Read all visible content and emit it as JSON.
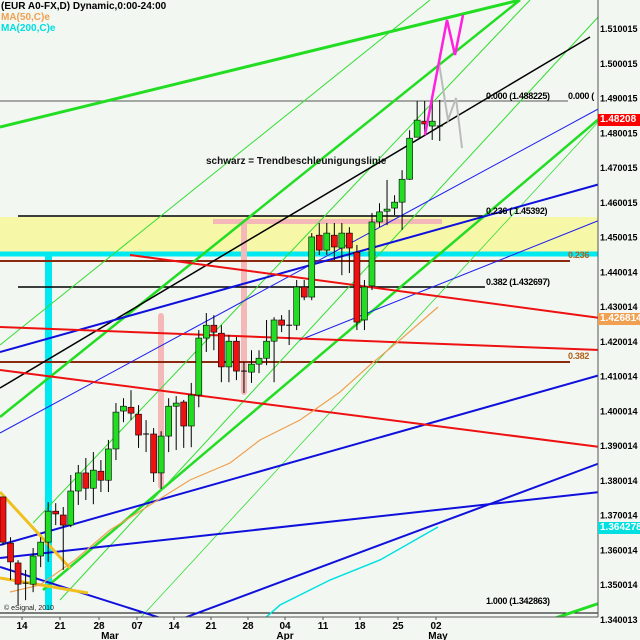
{
  "header": {
    "symbol_line": "(EUR A0-FX,D) Dynamic,0:00-24:00",
    "ma50_label": "MA(50,C)e",
    "ma200_label": "MA(200,C)e"
  },
  "colors": {
    "ma50": "#f0a050",
    "ma200": "#00e0e0",
    "up": "#22dd22",
    "down": "#ee1111",
    "last_price": "#ff0000"
  },
  "annotation": "schwarz = Trendbeschleunigungslinie",
  "copyright": "© eSignal, 2010",
  "fib_labels": {
    "f0": "0.000 (1.488225)",
    "f0_right": "0.000 (",
    "f236": "0.236 ( 1.45392)",
    "f236_right": "0.236",
    "f382": "0.382 (1.432697)",
    "f382_right": "0.382",
    "f1000": "1.000 (1.342863)"
  },
  "badges": {
    "last": "1.48208",
    "ma50": "1.426814",
    "ma200": "1.364278"
  },
  "chart_data": {
    "type": "candlestick",
    "title": "(EUR A0-FX,D) Dynamic,0:00-24:00",
    "y_ticks": [
      "1.510015",
      "1.500015",
      "1.490015",
      "1.480015",
      "1.470015",
      "1.460015",
      "1.450015",
      "1.440014",
      "1.430014",
      "1.420014",
      "1.410014",
      "1.400014",
      "1.390014",
      "1.380014",
      "1.370014",
      "1.360014",
      "1.350014",
      "1.340013"
    ],
    "ylim": [
      1.3385,
      1.5185
    ],
    "x_ticks": [
      "14",
      "21",
      "28",
      "07",
      "14",
      "21",
      "28",
      "04",
      "11",
      "18",
      "25",
      "02"
    ],
    "x_months": [
      "Mar",
      "Apr",
      "May"
    ],
    "ohlc": [
      [
        1.3754,
        1.3754,
        1.3615,
        1.3624
      ],
      [
        1.3621,
        1.3638,
        1.3515,
        1.3567
      ],
      [
        1.3564,
        1.3572,
        1.3443,
        1.3503
      ],
      [
        1.3503,
        1.3544,
        1.3457,
        1.3506
      ],
      [
        1.3503,
        1.3607,
        1.348,
        1.3584
      ],
      [
        1.3584,
        1.3638,
        1.3552,
        1.3624
      ],
      [
        1.3624,
        1.3739,
        1.3567,
        1.3713
      ],
      [
        1.3713,
        1.3736,
        1.3673,
        1.3705
      ],
      [
        1.3702,
        1.3725,
        1.3544,
        1.3673
      ],
      [
        1.3673,
        1.3817,
        1.3667,
        1.3771
      ],
      [
        1.3771,
        1.3846,
        1.3731,
        1.3823
      ],
      [
        1.3823,
        1.3866,
        1.3745,
        1.3779
      ],
      [
        1.3779,
        1.3883,
        1.3733,
        1.3831
      ],
      [
        1.3828,
        1.386,
        1.3768,
        1.3802
      ],
      [
        1.3802,
        1.3918,
        1.3768,
        1.3892
      ],
      [
        1.3892,
        1.4024,
        1.386,
        1.3998
      ],
      [
        1.4001,
        1.4038,
        1.3969,
        1.4015
      ],
      [
        1.4012,
        1.4061,
        1.3975,
        1.3995
      ],
      [
        1.3992,
        1.4018,
        1.3895,
        1.3932
      ],
      [
        1.3932,
        1.3975,
        1.3883,
        1.3935
      ],
      [
        1.3935,
        1.3952,
        1.3797,
        1.3823
      ],
      [
        1.3823,
        1.3943,
        1.3777,
        1.3929
      ],
      [
        1.3929,
        1.4038,
        1.3883,
        1.4015
      ],
      [
        1.4015,
        1.4044,
        1.3889,
        1.4024
      ],
      [
        1.4027,
        1.4033,
        1.3895,
        1.3958
      ],
      [
        1.3958,
        1.4082,
        1.3897,
        1.4047
      ],
      [
        1.4047,
        1.4234,
        1.4012,
        1.4211
      ],
      [
        1.4211,
        1.4283,
        1.4171,
        1.4248
      ],
      [
        1.4248,
        1.4277,
        1.4176,
        1.4228
      ],
      [
        1.4225,
        1.4248,
        1.4084,
        1.4128
      ],
      [
        1.4128,
        1.422,
        1.4084,
        1.4202
      ],
      [
        1.4202,
        1.4214,
        1.409,
        1.4116
      ],
      [
        1.4113,
        1.4142,
        1.4053,
        1.4116
      ],
      [
        1.4113,
        1.4176,
        1.4082,
        1.4136
      ],
      [
        1.4136,
        1.4176,
        1.411,
        1.4153
      ],
      [
        1.4153,
        1.4263,
        1.4133,
        1.4202
      ],
      [
        1.4202,
        1.4271,
        1.4084,
        1.4263
      ],
      [
        1.4263,
        1.4277,
        1.4228,
        1.4248
      ],
      [
        1.4248,
        1.4292,
        1.4191,
        1.4246
      ],
      [
        1.4248,
        1.4378,
        1.4234,
        1.4358
      ],
      [
        1.4358,
        1.4378,
        1.432,
        1.4329
      ],
      [
        1.4329,
        1.4513,
        1.432,
        1.4502
      ],
      [
        1.4507,
        1.4542,
        1.445,
        1.4464
      ],
      [
        1.4464,
        1.4542,
        1.445,
        1.4513
      ],
      [
        1.4507,
        1.4542,
        1.4435,
        1.4473
      ],
      [
        1.447,
        1.4542,
        1.4392,
        1.4513
      ],
      [
        1.4513,
        1.453,
        1.4398,
        1.447
      ],
      [
        1.4458,
        1.4479,
        1.4234,
        1.4257
      ],
      [
        1.4263,
        1.4378,
        1.4234,
        1.4358
      ],
      [
        1.4361,
        1.4571,
        1.4349,
        1.4545
      ],
      [
        1.4545,
        1.4599,
        1.453,
        1.4574
      ],
      [
        1.4576,
        1.4666,
        1.4536,
        1.4582
      ],
      [
        1.4585,
        1.4622,
        1.4565,
        1.4602
      ],
      [
        1.4602,
        1.4694,
        1.4522,
        1.4668
      ],
      [
        1.4668,
        1.4809,
        1.4666,
        1.4786
      ],
      [
        1.4789,
        1.4893,
        1.4789,
        1.4838
      ],
      [
        1.4835,
        1.4893,
        1.4804,
        1.4827
      ],
      [
        1.4821,
        1.4896,
        1.4781,
        1.4835
      ],
      [
        1.4821,
        1.4896,
        1.4778,
        1.4821
      ]
    ],
    "fib_levels": [
      1.488225,
      1.45392,
      1.432697,
      1.342863
    ],
    "grid": false
  }
}
